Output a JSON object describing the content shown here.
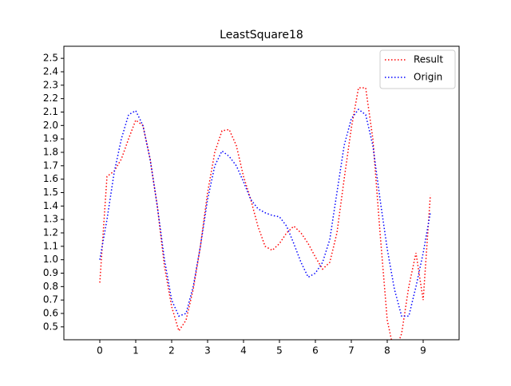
{
  "chart_data": {
    "type": "line",
    "title": "LeastSquare18",
    "x": [
      0,
      0.2,
      0.4,
      0.6,
      0.8,
      1.0,
      1.2,
      1.4,
      1.6,
      1.8,
      2.0,
      2.2,
      2.4,
      2.6,
      2.8,
      3.0,
      3.2,
      3.4,
      3.6,
      3.8,
      4.0,
      4.2,
      4.4,
      4.6,
      4.8,
      5.0,
      5.2,
      5.4,
      5.6,
      5.8,
      6.0,
      6.2,
      6.4,
      6.6,
      6.8,
      7.0,
      7.2,
      7.4,
      7.6,
      7.8,
      8.0,
      8.2,
      8.4,
      8.6,
      8.8,
      9.0,
      9.2
    ],
    "series": [
      {
        "name": "Result",
        "color": "#ff0000",
        "values": [
          0.83,
          1.62,
          1.66,
          1.75,
          1.9,
          2.04,
          2.0,
          1.75,
          1.4,
          0.95,
          0.65,
          0.47,
          0.55,
          0.78,
          1.1,
          1.5,
          1.8,
          1.96,
          1.97,
          1.85,
          1.62,
          1.45,
          1.25,
          1.1,
          1.07,
          1.12,
          1.2,
          1.25,
          1.2,
          1.12,
          1.02,
          0.93,
          0.98,
          1.2,
          1.6,
          1.98,
          2.28,
          2.28,
          1.9,
          1.2,
          0.55,
          0.3,
          0.45,
          0.8,
          1.05,
          0.7,
          1.48
        ]
      },
      {
        "name": "Origin",
        "color": "#0000ff",
        "values": [
          1.0,
          1.3,
          1.65,
          1.9,
          2.08,
          2.11,
          2.0,
          1.75,
          1.4,
          1.0,
          0.7,
          0.58,
          0.6,
          0.8,
          1.1,
          1.45,
          1.7,
          1.81,
          1.77,
          1.7,
          1.58,
          1.45,
          1.38,
          1.35,
          1.33,
          1.32,
          1.25,
          1.12,
          0.98,
          0.87,
          0.9,
          0.98,
          1.15,
          1.5,
          1.85,
          2.05,
          2.12,
          2.08,
          1.85,
          1.45,
          1.08,
          0.78,
          0.58,
          0.58,
          0.8,
          1.05,
          1.35
        ]
      }
    ],
    "xlim": [
      -1,
      10
    ],
    "ylim": [
      0.404,
      2.59
    ],
    "xticks": [
      0,
      1,
      2,
      3,
      4,
      5,
      6,
      7,
      8,
      9
    ],
    "yticks": [
      0.5,
      0.6,
      0.7,
      0.8,
      0.9,
      {
        "value": 1,
        "label": "1.0"
      },
      1.1,
      1.2,
      1.3,
      1.4,
      1.5,
      1.6,
      1.7,
      1.8,
      1.9,
      {
        "value": 2,
        "label": "2.0"
      },
      2.1,
      2.2,
      2.3,
      2.4,
      2.5
    ],
    "legend": "upper right"
  }
}
